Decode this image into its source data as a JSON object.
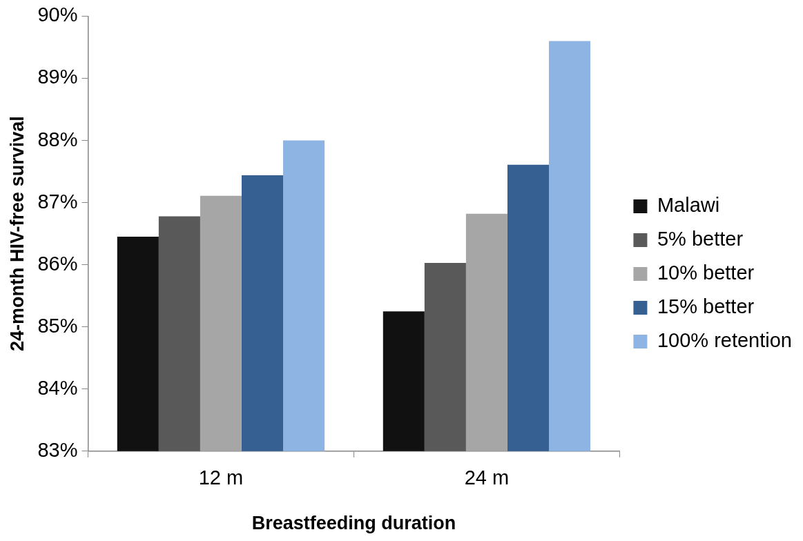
{
  "chart_data": {
    "type": "bar",
    "xlabel": "Breastfeeding duration",
    "ylabel": "24-month HIV-free survival",
    "categories": [
      "12 m",
      "24 m"
    ],
    "series": [
      {
        "name": "Malawi",
        "color": "#111111",
        "values": [
          86.45,
          85.25
        ]
      },
      {
        "name": "5% better",
        "color": "#595959",
        "values": [
          86.78,
          86.03
        ]
      },
      {
        "name": "10% better",
        "color": "#a6a6a6",
        "values": [
          87.11,
          86.82
        ]
      },
      {
        "name": "15% better",
        "color": "#376092",
        "values": [
          87.44,
          87.61
        ]
      },
      {
        "name": "100% retention",
        "color": "#8eb4e3",
        "values": [
          88.0,
          89.6
        ]
      }
    ],
    "ylim": [
      83,
      90
    ],
    "yticks": [
      {
        "value": 83,
        "label": "83%"
      },
      {
        "value": 84,
        "label": "84%"
      },
      {
        "value": 85,
        "label": "85%"
      },
      {
        "value": 86,
        "label": "86%"
      },
      {
        "value": 87,
        "label": "87%"
      },
      {
        "value": 88,
        "label": "88%"
      },
      {
        "value": 89,
        "label": "89%"
      },
      {
        "value": 90,
        "label": "90%"
      }
    ],
    "grid": false,
    "legend": "right"
  }
}
